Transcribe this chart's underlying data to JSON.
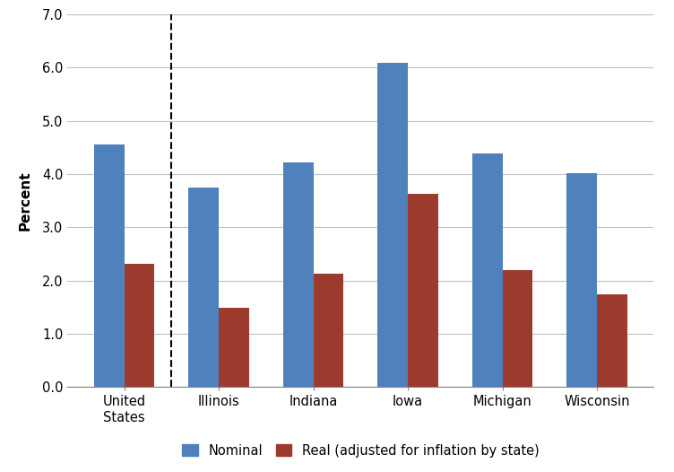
{
  "categories": [
    "United\nStates",
    "Illinois",
    "Indiana",
    "Iowa",
    "Michigan",
    "Wisconsin"
  ],
  "nominal": [
    4.55,
    3.75,
    4.22,
    6.08,
    4.38,
    4.02
  ],
  "real": [
    2.32,
    1.48,
    2.12,
    3.62,
    2.2,
    1.74
  ],
  "nominal_color": "#4F81BD",
  "real_color": "#9C3A2E",
  "ylabel": "Percent",
  "ylim": [
    0,
    7.0
  ],
  "yticks": [
    0.0,
    1.0,
    2.0,
    3.0,
    4.0,
    5.0,
    6.0,
    7.0
  ],
  "legend_nominal": "Nominal",
  "legend_real": "Real (adjusted for inflation by state)",
  "bar_width": 0.32,
  "background_color": "#ffffff",
  "grid_color": "#c0c0c0"
}
